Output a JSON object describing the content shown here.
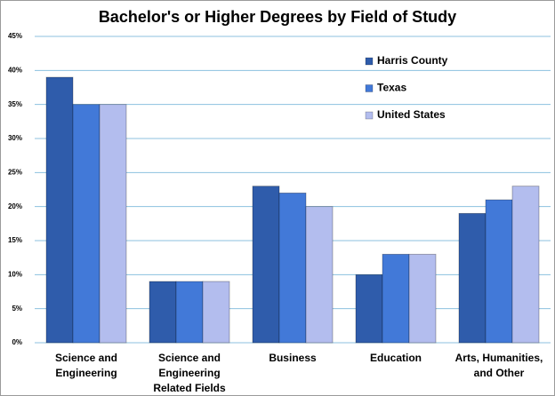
{
  "chart_data": {
    "type": "bar",
    "title": "Bachelor's or Higher Degrees by Field of Study",
    "categories": [
      "Science and Engineering",
      "Science and Engineering Related Fields",
      "Business",
      "Education",
      "Arts, Humanities, and Other"
    ],
    "series": [
      {
        "name": "Harris County",
        "color": "#2f5cab",
        "values": [
          39,
          9,
          23,
          10,
          19
        ]
      },
      {
        "name": "Texas",
        "color": "#4279d8",
        "values": [
          35,
          9,
          22,
          13,
          21
        ]
      },
      {
        "name": "United States",
        "color": "#b3bdee",
        "values": [
          35,
          9,
          20,
          13,
          23
        ]
      }
    ],
    "ylim": [
      0,
      45
    ],
    "yticks": [
      {
        "value": 0,
        "label": "0%"
      },
      {
        "value": 5,
        "label": "5%"
      },
      {
        "value": 10,
        "label": "10%"
      },
      {
        "value": 15,
        "label": "15%"
      },
      {
        "value": 20,
        "label": "20%"
      },
      {
        "value": 25,
        "label": "25%"
      },
      {
        "value": 30,
        "label": "30%"
      },
      {
        "value": 35,
        "label": "35%"
      },
      {
        "value": 40,
        "label": "40%"
      },
      {
        "value": 45,
        "label": "45%"
      }
    ],
    "grid": true,
    "legend": "top-right"
  }
}
